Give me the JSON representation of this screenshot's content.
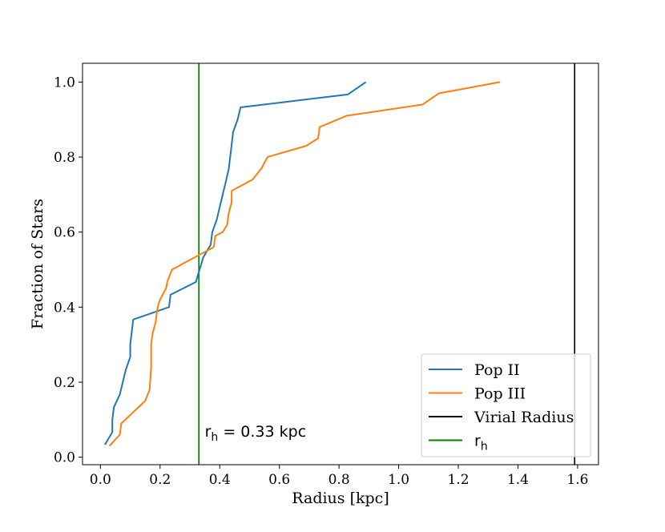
{
  "chart_data": {
    "type": "line",
    "xlabel": "Radius [kpc]",
    "ylabel": "Fraction of Stars",
    "xlim": [
      -0.06,
      1.67
    ],
    "ylim": [
      -0.02,
      1.05
    ],
    "xticks": [
      0.0,
      0.2,
      0.4,
      0.6,
      0.8,
      1.0,
      1.2,
      1.4,
      1.6
    ],
    "xtick_labels": [
      "0.0",
      "0.2",
      "0.4",
      "0.6",
      "0.8",
      "1.0",
      "1.2",
      "1.4",
      "1.6"
    ],
    "yticks": [
      0.0,
      0.2,
      0.4,
      0.6,
      0.8,
      1.0
    ],
    "ytick_labels": [
      "0.0",
      "0.2",
      "0.4",
      "0.6",
      "0.8",
      "1.0"
    ],
    "grid": false,
    "legend_position": "lower-right",
    "series": [
      {
        "name": "Pop II",
        "color": "#1f77b4",
        "x": [
          0.015,
          0.04,
          0.04,
          0.045,
          0.065,
          0.075,
          0.085,
          0.1,
          0.1,
          0.11,
          0.23,
          0.235,
          0.32,
          0.345,
          0.37,
          0.375,
          0.39,
          0.4,
          0.41,
          0.42,
          0.43,
          0.435,
          0.44,
          0.445,
          0.46,
          0.47,
          0.475,
          0.83,
          0.89
        ],
        "y": [
          0.033,
          0.067,
          0.1,
          0.133,
          0.167,
          0.2,
          0.233,
          0.267,
          0.3,
          0.367,
          0.4,
          0.433,
          0.467,
          0.533,
          0.567,
          0.6,
          0.633,
          0.667,
          0.7,
          0.733,
          0.767,
          0.8,
          0.833,
          0.867,
          0.9,
          0.933,
          0.933,
          0.967,
          1.0
        ]
      },
      {
        "name": "Pop III",
        "color": "#ff7f0e",
        "x": [
          0.03,
          0.065,
          0.07,
          0.11,
          0.15,
          0.165,
          0.17,
          0.17,
          0.175,
          0.185,
          0.19,
          0.195,
          0.2,
          0.22,
          0.225,
          0.24,
          0.38,
          0.385,
          0.41,
          0.425,
          0.43,
          0.44,
          0.44,
          0.51,
          0.54,
          0.56,
          0.69,
          0.73,
          0.735,
          0.825,
          1.08,
          1.135,
          1.34
        ],
        "y": [
          0.03,
          0.06,
          0.09,
          0.12,
          0.15,
          0.18,
          0.24,
          0.3,
          0.33,
          0.36,
          0.39,
          0.41,
          0.42,
          0.45,
          0.47,
          0.5,
          0.56,
          0.59,
          0.6,
          0.62,
          0.65,
          0.68,
          0.71,
          0.74,
          0.77,
          0.8,
          0.83,
          0.85,
          0.88,
          0.91,
          0.94,
          0.97,
          1.0
        ]
      }
    ],
    "vlines": [
      {
        "name": "Virial Radius",
        "x": 1.59,
        "color": "#000000"
      },
      {
        "name": "r_h",
        "x": 0.33,
        "color": "#008000"
      }
    ],
    "annotation": {
      "text_main": "r",
      "text_sub": "h",
      "text_rest": " = 0.33 kpc",
      "x": 0.35,
      "y": 0.055
    },
    "legend": {
      "entries": [
        {
          "label": "Pop II",
          "color": "#1f77b4"
        },
        {
          "label": "Pop III",
          "color": "#ff7f0e"
        },
        {
          "label": "Virial Radius",
          "color": "#000000"
        },
        {
          "label_main": "r",
          "label_sub": "h",
          "color": "#008000"
        }
      ]
    }
  }
}
